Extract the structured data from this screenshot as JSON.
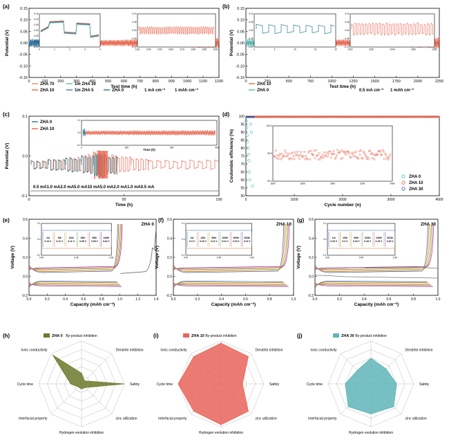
{
  "panel_labels": [
    "(a)",
    "(b)",
    "(c)",
    "(d)",
    "(e)",
    "(f)",
    "(g)",
    "(h)",
    "(i)",
    "(j)"
  ],
  "colors": {
    "zha0": "#1f7a8c",
    "zha10": "#e8624a",
    "zha30": "#5fb8b8",
    "zha70": "#e58b5a",
    "zha5": "#3a76b0",
    "ce0": "#4dbab5",
    "ce30": "#3556a0",
    "olive": "#6b7a2c",
    "radar_h": "#6b7a2c",
    "radar_i": "#e8645a",
    "radar_j": "#5fb5b8",
    "cycles": [
      "#2d5fb0",
      "#d8752f",
      "#d4b62b",
      "#7da34a",
      "#e05a5a",
      "#8a3aa0"
    ]
  },
  "chart_data": [
    {
      "id": "a",
      "type": "line",
      "xlabel": "Test time (h)",
      "ylabel": "Potential (V)",
      "xlim": [
        0,
        1200
      ],
      "ylim": [
        -0.15,
        0.15
      ],
      "xticks": [
        "0",
        "100",
        "200",
        "300",
        "400",
        "500",
        "600",
        "700",
        "800",
        "900",
        "1000",
        "1100",
        "1200"
      ],
      "yticks": [
        "-0.15",
        "-0.10",
        "-0.05",
        "0.00",
        "0.05",
        "0.10",
        "0.15"
      ],
      "legend": [
        "ZHA 70",
        "1m ZHA 30",
        "ZHA 10",
        "1m ZHA 5",
        "ZHA 0"
      ],
      "conditions": [
        "1 mA cm⁻²",
        "1 mAh cm⁻²"
      ],
      "series": [
        {
          "name": "ZHA 10",
          "x": [
            0,
            1200
          ],
          "amplitude": [
            0.012,
            0.045
          ]
        },
        {
          "name": "ZHA 0",
          "x": [
            0,
            270
          ],
          "amplitude": [
            0.03,
            0.04
          ]
        },
        {
          "name": "ZHA 70",
          "x": [
            0,
            260
          ],
          "amplitude": [
            0.03,
            0.04
          ]
        }
      ],
      "inset1": {
        "xticks": [
          "0",
          "1",
          "2",
          "3",
          "4"
        ],
        "yticks": [
          "-0.15",
          "-0.10",
          "-0.05",
          "0.00",
          "0.05",
          "0.10",
          "0.15"
        ]
      },
      "inset2": {
        "xticks": [
          "1130",
          "1140",
          "1150",
          "1160",
          "1170",
          "1180",
          "1190",
          "1200"
        ],
        "yticks": [
          "-0.10",
          "-0.05",
          "0.00",
          "0.05",
          "0.10"
        ]
      }
    },
    {
      "id": "b",
      "type": "line",
      "xlabel": "Test time (h)",
      "ylabel": "Potential (V)",
      "xlim": [
        0,
        2250
      ],
      "ylim": [
        -0.15,
        0.15
      ],
      "xticks": [
        "0",
        "250",
        "500",
        "750",
        "1000",
        "1250",
        "1500",
        "1750",
        "2000",
        "2250"
      ],
      "yticks": [
        "-0.15",
        "-0.10",
        "-0.05",
        "0.00",
        "0.05",
        "0.10",
        "0.15"
      ],
      "legend": [
        "ZHA 10",
        "ZHA 0"
      ],
      "conditions": [
        "0.5 mA cm⁻²",
        "1 mAh cm⁻²"
      ],
      "series": [
        {
          "name": "ZHA 10",
          "x": [
            0,
            2250
          ],
          "amplitude": [
            0.012,
            0.05
          ]
        },
        {
          "name": "ZHA 0",
          "x": [
            0,
            230
          ],
          "amplitude": [
            0.03,
            0.04
          ]
        }
      ],
      "inset1": {
        "xticks": [
          "0",
          "5",
          "10",
          "15",
          "20"
        ],
        "yticks": [
          "-0.10",
          "-0.05",
          "0.00",
          "0.05",
          "0.10"
        ]
      },
      "inset2": {
        "xticks": [
          "2200",
          "2220",
          "2240",
          "2260",
          "2280"
        ],
        "yticks": [
          "-0.10",
          "-0.05",
          "0.00",
          "0.05",
          "0.10"
        ]
      }
    },
    {
      "id": "c",
      "type": "line",
      "xlabel": "Time (h)",
      "ylabel": "Potential (V)",
      "xlim": [
        0,
        100
      ],
      "ylim": [
        -0.1,
        0.1
      ],
      "xticks": [
        "0",
        "50",
        "100"
      ],
      "yticks": [
        "-0.1",
        "0.0",
        "0.1"
      ],
      "legend": [
        "ZHA 0",
        "ZHA 10"
      ],
      "rate_steps": [
        "0.5 mA",
        "1.0 mA",
        "2.0 mA",
        "5.0 mA",
        "10 mA",
        "5.0 mA",
        "2.0 mA",
        "1.0 mA",
        "0.5 mA"
      ],
      "inset": {
        "xlabel": "Time (h)",
        "xticks": [
          "0",
          "300",
          "600",
          "900"
        ],
        "yticks": [
          "-0.1",
          "0.0",
          "0.1"
        ]
      }
    },
    {
      "id": "d",
      "type": "scatter",
      "xlabel": "Cycle number (n)",
      "ylabel": "Coulombic efficiency (%)",
      "xlim": [
        0,
        4500
      ],
      "ylim": [
        50,
        100
      ],
      "xticks": [
        "0",
        "1000",
        "2000",
        "3000",
        "4000"
      ],
      "yticks": [
        "50",
        "55",
        "60",
        "65",
        "70",
        "75",
        "80",
        "85",
        "90",
        "95",
        "100"
      ],
      "legend": [
        "ZHA 0",
        "ZHA 10",
        "ZHA 30"
      ],
      "series": [
        {
          "name": "ZHA 10",
          "x_range": [
            0,
            4500
          ],
          "y": 99.6
        },
        {
          "name": "ZHA 30",
          "x_range": [
            0,
            200
          ],
          "y": 99.5
        },
        {
          "name": "ZHA 0",
          "x": [
            10,
            20,
            30,
            40,
            50,
            60,
            70,
            80,
            90,
            110,
            130,
            150
          ],
          "y": [
            97,
            93,
            88,
            84,
            80,
            76,
            72,
            65,
            60,
            95,
            90,
            56
          ]
        }
      ],
      "inset": {
        "xticks": [
          "1600",
          "1800",
          "2000",
          "2200",
          "2400"
        ],
        "yticks": [
          "99.0",
          "99.5",
          "100.0"
        ],
        "xlim": [
          1500,
          2500
        ],
        "ylim": [
          98.9,
          100.0
        ],
        "mean": 99.45
      }
    },
    {
      "id": "e",
      "type": "line",
      "title": "ZHA 0",
      "xlabel": "Capacity (mAh cm⁻²)",
      "ylabel": "Voltage (V)",
      "xlim": [
        0,
        1.4
      ],
      "ylim": [
        -0.2,
        0.6
      ],
      "xticks": [
        "0.0",
        "0.2",
        "0.4",
        "0.6",
        "0.8",
        "1.0",
        "1.2",
        "1.4"
      ],
      "yticks": [
        "-0.2",
        "0.0",
        "0.2",
        "0.4",
        "0.6"
      ],
      "inset": {
        "xticks": [
          "0.40",
          "0.45",
          "0.50"
        ],
        "yticks": [
          "-0.1",
          "0.0",
          "0.1"
        ],
        "cycles": [
          "1st",
          "5th",
          "10th",
          "20th",
          "50th",
          "140th"
        ],
        "overpotentials": [
          "0.14 V",
          "0.11 V",
          "0.11 V",
          "0.09 V",
          "0.05 V",
          "0.04 V"
        ]
      }
    },
    {
      "id": "f",
      "type": "line",
      "title": "ZHA 10",
      "xlabel": "Capacity (mAh cm⁻²)",
      "ylabel": "Voltage (V)",
      "xlim": [
        0,
        1.0
      ],
      "ylim": [
        -0.2,
        0.6
      ],
      "xticks": [
        "0.0",
        "0.2",
        "0.4",
        "0.6",
        "0.8",
        "1.0"
      ],
      "yticks": [
        "-0.2",
        "0.0",
        "0.2",
        "0.4",
        "0.6"
      ],
      "inset": {
        "xticks": [
          "0.40",
          "0.45",
          "0.50"
        ],
        "yticks": [
          "-0.1",
          "0.0",
          "0.1"
        ],
        "cycles": [
          "1st",
          "10th",
          "50th",
          "100th",
          "200th",
          "300th"
        ],
        "overpotentials": [
          "0.3 V",
          "0.15 V",
          "0.11 V",
          "0.13 V",
          "0.15 V",
          "0.13 V"
        ]
      }
    },
    {
      "id": "g",
      "type": "line",
      "title": "ZHA 30",
      "xlabel": "Capacity (mAh cm⁻²)",
      "ylabel": "Voltage (V)",
      "xlim": [
        0,
        1.0
      ],
      "ylim": [
        -0.2,
        0.6
      ],
      "xticks": [
        "0.0",
        "0.2",
        "0.4",
        "0.6",
        "0.8",
        "1.0"
      ],
      "yticks": [
        "-0.2",
        "0.0",
        "0.2",
        "0.4",
        "0.6"
      ],
      "inset": {
        "xticks": [
          "0.40",
          "0.45",
          "0.50"
        ],
        "yticks": [
          "-0.1",
          "0.0",
          "0.1"
        ],
        "cycles": [
          "1st",
          "10th",
          "50th",
          "100th",
          "100th",
          "281th"
        ],
        "overpotentials": [
          "0.23 V",
          "0.2 V",
          "0.19 V",
          "0.18 V",
          "0.19 V",
          "0.16 V"
        ]
      }
    },
    {
      "id": "h",
      "type": "radar",
      "title": "ZHA 0",
      "axes": [
        "By-product inhibition",
        "Dendrite inhibition",
        "Safety",
        "zinc utilization",
        "Hydrogen evolution inhibition",
        "Interfacial property",
        "Cycle time",
        "Ionic conductivity"
      ],
      "values": [
        0.25,
        0.1,
        1.0,
        0.12,
        0.12,
        0.1,
        0.25,
        0.95
      ]
    },
    {
      "id": "i",
      "type": "radar",
      "title": "ZHA 10",
      "axes": [
        "By-product inhibition",
        "Dendrite inhibition",
        "Safety",
        "zinc utilization",
        "Hydrogen evolution inhibition",
        "Interfacial property",
        "Cycle time",
        "Ionic conductivity"
      ],
      "values": [
        0.95,
        0.9,
        0.5,
        0.9,
        0.95,
        0.9,
        1.0,
        0.9
      ]
    },
    {
      "id": "j",
      "type": "radar",
      "title": "ZHA 30",
      "axes": [
        "By-product inhibition",
        "Dendrite inhibition",
        "Safety",
        "zinc utilization",
        "Hydrogen evolution inhibition",
        "Interfacial property",
        "Cycle time",
        "Ionic conductivity"
      ],
      "values": [
        0.6,
        0.5,
        0.6,
        0.75,
        0.7,
        0.75,
        0.6,
        0.45
      ]
    }
  ]
}
